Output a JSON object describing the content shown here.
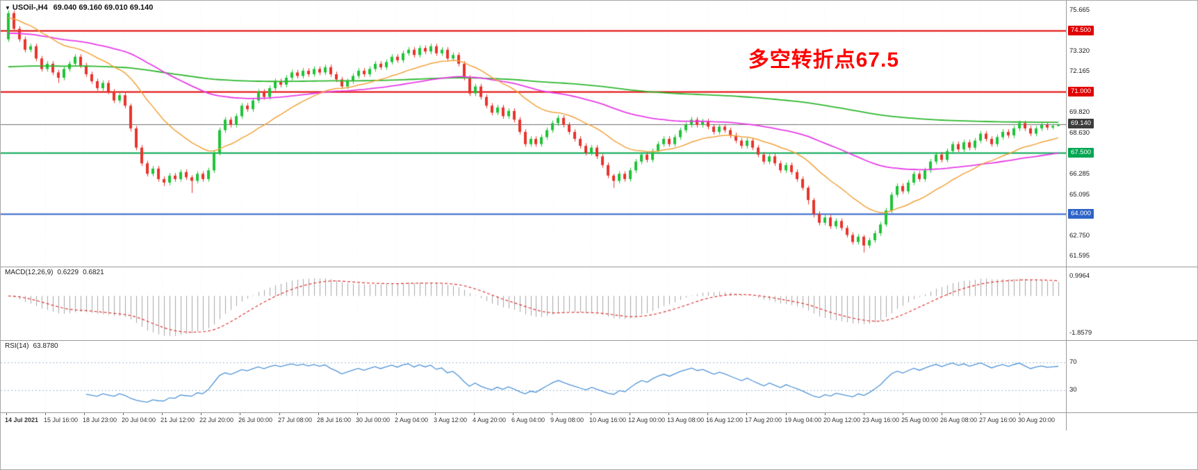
{
  "header": {
    "dropdown": "▼",
    "title": "USOil-,H4",
    "ohlc": "69.040 69.160 69.010 69.140"
  },
  "annotation": {
    "text": "多空转折点67.5",
    "color": "#ff0000"
  },
  "indicators": {
    "macd": {
      "name": "MACD(12,26,9)",
      "value_main": "0.6229",
      "value_signal": "0.6821"
    },
    "rsi": {
      "name": "RSI(14)",
      "value": "63.8780"
    }
  },
  "chart_data": {
    "type": "candlestick",
    "symbol": "USOil-",
    "timeframe": "H4",
    "title": "USOil-,H4 69.040 69.160 69.010 69.140",
    "up_color": "#1fc437",
    "down_color": "#e8342c",
    "price_range": {
      "max": 76.05,
      "min": 61.15
    },
    "price_axis_labels": [
      {
        "price": 75.665,
        "label": "75.665"
      },
      {
        "price": 73.32,
        "label": "73.320"
      },
      {
        "price": 72.165,
        "label": "72.165"
      },
      {
        "price": 69.82,
        "label": "69.820"
      },
      {
        "price": 68.63,
        "label": "68.630"
      },
      {
        "price": 66.285,
        "label": "66.285"
      },
      {
        "price": 65.095,
        "label": "65.095"
      },
      {
        "price": 62.75,
        "label": "62.750"
      },
      {
        "price": 61.595,
        "label": "61.595"
      }
    ],
    "levels": [
      {
        "price": 74.5,
        "label": "74.500",
        "color": "#e10000",
        "width": 2
      },
      {
        "price": 71.0,
        "label": "71.000",
        "color": "#e10000",
        "width": 2
      },
      {
        "price": 67.5,
        "label": "67.500",
        "color": "#00a651",
        "width": 2
      },
      {
        "price": 64.0,
        "label": "64.000",
        "color": "#2e64c8",
        "width": 2
      },
      {
        "price": 69.14,
        "label": "69.140",
        "color": "#6e6e6e",
        "width": 1,
        "badge_color": "#3c3c3c"
      }
    ],
    "moving_averages": [
      {
        "name": "ma-slow-green",
        "color": "#2eb82e",
        "period": 260,
        "seed": 72.4,
        "width": 1.8
      },
      {
        "name": "ma-medium-magenta",
        "color": "#e73ce7",
        "period": 70,
        "seed": 74.3,
        "width": 1.8
      },
      {
        "name": "ma-fast-orange",
        "color": "#f2a33c",
        "period": 20,
        "seed": 75.2,
        "width": 1.5
      }
    ],
    "macd": {
      "fast": 12,
      "slow": 26,
      "signal_period": 9,
      "histogram_color": "#a6a6a6",
      "signal_color": "#e03333",
      "axis": {
        "top": 1.05,
        "bottom": -2.0,
        "max_label": "0.9964",
        "max_value": 0.9964,
        "min_label": "-1.8579",
        "min_value": -1.8579
      }
    },
    "rsi": {
      "period": 14,
      "color": "#4f94d8",
      "levels": [
        70,
        30
      ],
      "level_color": "#9db8d8"
    },
    "time_labels": [
      "14 Jul 2021",
      "15 Jul 16:00",
      "18 Jul 23:00",
      "20 Jul 04:00",
      "21 Jul 12:00",
      "22 Jul 20:00",
      "26 Jul 00:00",
      "27 Jul 08:00",
      "28 Jul 16:00",
      "30 Jul 00:00",
      "2 Aug 04:00",
      "3 Aug 12:00",
      "4 Aug 20:00",
      "6 Aug 04:00",
      "9 Aug 08:00",
      "10 Aug 16:00",
      "12 Aug 00:00",
      "13 Aug 08:00",
      "16 Aug 12:00",
      "17 Aug 20:00",
      "19 Aug 04:00",
      "20 Aug 12:00",
      "23 Aug 16:00",
      "25 Aug 00:00",
      "26 Aug 08:00",
      "27 Aug 16:00",
      "30 Aug 20:00"
    ],
    "candles": [
      [
        74.0,
        75.66,
        73.85,
        75.5
      ],
      [
        75.5,
        75.65,
        74.45,
        74.6
      ],
      [
        74.6,
        74.75,
        73.85,
        74.0
      ],
      [
        74.0,
        74.15,
        73.25,
        73.4
      ],
      [
        73.4,
        73.75,
        73.25,
        73.6
      ],
      [
        73.6,
        73.75,
        72.75,
        72.9
      ],
      [
        72.9,
        73.05,
        72.15,
        72.3
      ],
      [
        72.3,
        72.75,
        72.15,
        72.6
      ],
      [
        72.6,
        72.75,
        71.95,
        72.1
      ],
      [
        72.1,
        72.25,
        71.5,
        71.8
      ],
      [
        71.8,
        72.45,
        71.65,
        72.3
      ],
      [
        72.3,
        72.75,
        72.15,
        72.6
      ],
      [
        72.6,
        73.15,
        72.45,
        73.0
      ],
      [
        73.0,
        73.15,
        72.35,
        72.5
      ],
      [
        72.5,
        72.65,
        71.85,
        72.0
      ],
      [
        72.0,
        72.15,
        71.45,
        71.6
      ],
      [
        71.6,
        71.75,
        71.05,
        71.2
      ],
      [
        71.2,
        71.65,
        71.05,
        71.5
      ],
      [
        71.5,
        71.65,
        70.85,
        71.0
      ],
      [
        71.0,
        71.15,
        70.35,
        70.5
      ],
      [
        70.5,
        70.95,
        70.35,
        70.8
      ],
      [
        70.8,
        70.95,
        70.05,
        70.2
      ],
      [
        70.2,
        70.32,
        68.72,
        68.9
      ],
      [
        68.9,
        69.05,
        67.65,
        67.8
      ],
      [
        67.8,
        67.95,
        66.75,
        66.9
      ],
      [
        66.9,
        67.05,
        66.15,
        66.3
      ],
      [
        66.3,
        66.75,
        66.15,
        66.6
      ],
      [
        66.6,
        66.75,
        65.85,
        66.0
      ],
      [
        66.0,
        66.15,
        65.6,
        65.8
      ],
      [
        65.8,
        66.35,
        65.65,
        66.2
      ],
      [
        66.2,
        66.35,
        65.85,
        66.0
      ],
      [
        66.0,
        66.55,
        65.85,
        66.4
      ],
      [
        66.4,
        66.55,
        65.95,
        66.1
      ],
      [
        66.1,
        66.22,
        65.2,
        65.9
      ],
      [
        65.9,
        66.45,
        65.75,
        66.3
      ],
      [
        66.3,
        66.45,
        65.85,
        66.0
      ],
      [
        66.0,
        66.65,
        65.85,
        66.5
      ],
      [
        66.5,
        67.65,
        66.35,
        67.5
      ],
      [
        67.5,
        68.95,
        67.35,
        68.8
      ],
      [
        68.8,
        69.55,
        68.65,
        69.4
      ],
      [
        69.4,
        69.55,
        68.95,
        69.1
      ],
      [
        69.1,
        69.75,
        68.95,
        69.6
      ],
      [
        69.6,
        70.35,
        69.45,
        70.2
      ],
      [
        70.2,
        70.35,
        69.85,
        70.0
      ],
      [
        70.0,
        70.65,
        69.85,
        70.5
      ],
      [
        70.5,
        71.15,
        70.35,
        71.0
      ],
      [
        71.0,
        71.15,
        70.55,
        70.7
      ],
      [
        70.7,
        71.35,
        70.55,
        71.2
      ],
      [
        71.2,
        71.75,
        71.05,
        71.6
      ],
      [
        71.6,
        71.75,
        71.25,
        71.4
      ],
      [
        71.4,
        71.95,
        71.25,
        71.8
      ],
      [
        71.8,
        72.25,
        71.65,
        72.1
      ],
      [
        72.1,
        72.25,
        71.75,
        71.9
      ],
      [
        71.9,
        72.35,
        71.75,
        72.2
      ],
      [
        72.2,
        72.35,
        71.85,
        72.0
      ],
      [
        72.0,
        72.45,
        71.85,
        72.3
      ],
      [
        72.3,
        72.45,
        71.95,
        72.1
      ],
      [
        72.1,
        72.55,
        71.95,
        72.4
      ],
      [
        72.4,
        72.55,
        71.85,
        72.0
      ],
      [
        72.0,
        72.15,
        71.55,
        71.7
      ],
      [
        71.7,
        71.85,
        71.15,
        71.3
      ],
      [
        71.3,
        71.75,
        71.15,
        71.6
      ],
      [
        71.6,
        72.05,
        71.45,
        71.9
      ],
      [
        71.9,
        72.35,
        71.75,
        72.2
      ],
      [
        72.2,
        72.35,
        71.85,
        72.0
      ],
      [
        72.0,
        72.45,
        71.85,
        72.3
      ],
      [
        72.3,
        72.75,
        72.15,
        72.6
      ],
      [
        72.6,
        72.75,
        72.25,
        72.4
      ],
      [
        72.4,
        72.85,
        72.25,
        72.7
      ],
      [
        72.7,
        73.15,
        72.55,
        73.0
      ],
      [
        73.0,
        73.15,
        72.65,
        72.8
      ],
      [
        72.8,
        73.35,
        72.65,
        73.2
      ],
      [
        73.2,
        73.55,
        73.05,
        73.4
      ],
      [
        73.4,
        73.55,
        72.95,
        73.1
      ],
      [
        73.1,
        73.65,
        72.95,
        73.5
      ],
      [
        73.5,
        73.65,
        73.15,
        73.3
      ],
      [
        73.3,
        73.75,
        73.15,
        73.6
      ],
      [
        73.6,
        73.75,
        73.05,
        73.2
      ],
      [
        73.2,
        73.55,
        73.05,
        73.4
      ],
      [
        73.4,
        73.55,
        72.75,
        72.9
      ],
      [
        72.9,
        73.25,
        72.75,
        73.1
      ],
      [
        73.1,
        73.25,
        72.45,
        72.6
      ],
      [
        72.6,
        72.75,
        71.65,
        71.8
      ],
      [
        71.8,
        71.95,
        70.75,
        70.9
      ],
      [
        70.9,
        71.45,
        70.75,
        71.3
      ],
      [
        71.3,
        71.45,
        70.55,
        70.7
      ],
      [
        70.7,
        70.85,
        70.05,
        70.2
      ],
      [
        70.2,
        70.35,
        69.65,
        69.8
      ],
      [
        69.8,
        70.25,
        69.65,
        70.1
      ],
      [
        70.1,
        70.25,
        69.45,
        69.6
      ],
      [
        69.6,
        70.05,
        69.45,
        69.9
      ],
      [
        69.9,
        70.05,
        69.25,
        69.4
      ],
      [
        69.4,
        69.55,
        68.55,
        68.7
      ],
      [
        68.7,
        68.85,
        67.85,
        68.0
      ],
      [
        68.0,
        68.45,
        67.85,
        68.3
      ],
      [
        68.3,
        68.45,
        67.85,
        68.0
      ],
      [
        68.0,
        68.55,
        67.85,
        68.4
      ],
      [
        68.4,
        68.95,
        68.25,
        68.8
      ],
      [
        68.8,
        69.35,
        68.65,
        69.2
      ],
      [
        69.2,
        69.65,
        69.05,
        69.5
      ],
      [
        69.5,
        69.65,
        68.95,
        69.1
      ],
      [
        69.1,
        69.25,
        68.55,
        68.7
      ],
      [
        68.7,
        68.85,
        68.15,
        68.3
      ],
      [
        68.3,
        68.45,
        67.75,
        67.9
      ],
      [
        67.9,
        68.05,
        67.35,
        67.5
      ],
      [
        67.5,
        67.95,
        67.35,
        67.8
      ],
      [
        67.8,
        67.95,
        67.15,
        67.3
      ],
      [
        67.3,
        67.45,
        66.65,
        66.8
      ],
      [
        66.8,
        66.95,
        66.05,
        66.2
      ],
      [
        66.2,
        66.3,
        65.5,
        65.9
      ],
      [
        65.9,
        66.45,
        65.75,
        66.3
      ],
      [
        66.3,
        66.45,
        65.85,
        66.0
      ],
      [
        66.0,
        66.65,
        65.85,
        66.5
      ],
      [
        66.5,
        67.15,
        66.35,
        67.0
      ],
      [
        67.0,
        67.55,
        66.85,
        67.4
      ],
      [
        67.4,
        67.55,
        66.95,
        67.1
      ],
      [
        67.1,
        67.75,
        66.95,
        67.6
      ],
      [
        67.6,
        68.15,
        67.45,
        68.0
      ],
      [
        68.0,
        68.45,
        67.85,
        68.3
      ],
      [
        68.3,
        68.45,
        67.85,
        68.0
      ],
      [
        68.0,
        68.55,
        67.85,
        68.4
      ],
      [
        68.4,
        68.95,
        68.25,
        68.8
      ],
      [
        68.8,
        69.25,
        68.65,
        69.1
      ],
      [
        69.1,
        69.55,
        68.95,
        69.4
      ],
      [
        69.4,
        69.55,
        68.95,
        69.1
      ],
      [
        69.1,
        69.45,
        68.95,
        69.3
      ],
      [
        69.3,
        69.45,
        68.85,
        69.0
      ],
      [
        69.0,
        69.15,
        68.55,
        68.7
      ],
      [
        68.7,
        69.15,
        68.55,
        69.0
      ],
      [
        69.0,
        69.15,
        68.65,
        68.8
      ],
      [
        68.8,
        68.95,
        68.35,
        68.5
      ],
      [
        68.5,
        68.65,
        68.05,
        68.2
      ],
      [
        68.2,
        68.35,
        67.75,
        67.9
      ],
      [
        67.9,
        68.35,
        67.75,
        68.2
      ],
      [
        68.2,
        68.35,
        67.65,
        67.8
      ],
      [
        67.8,
        67.95,
        67.25,
        67.4
      ],
      [
        67.4,
        67.55,
        66.85,
        67.0
      ],
      [
        67.0,
        67.45,
        66.85,
        67.3
      ],
      [
        67.3,
        67.45,
        66.75,
        66.9
      ],
      [
        66.9,
        67.05,
        66.35,
        66.5
      ],
      [
        66.5,
        66.95,
        66.35,
        66.8
      ],
      [
        66.8,
        66.95,
        66.25,
        66.4
      ],
      [
        66.4,
        66.55,
        65.85,
        66.0
      ],
      [
        66.0,
        66.15,
        65.35,
        65.5
      ],
      [
        65.5,
        65.62,
        64.55,
        64.8
      ],
      [
        64.8,
        64.92,
        63.8,
        64.0
      ],
      [
        64.0,
        64.15,
        63.35,
        63.5
      ],
      [
        63.5,
        63.95,
        63.35,
        63.8
      ],
      [
        63.8,
        63.95,
        63.15,
        63.3
      ],
      [
        63.3,
        63.75,
        63.15,
        63.6
      ],
      [
        63.6,
        63.75,
        63.05,
        63.2
      ],
      [
        63.2,
        63.35,
        62.65,
        62.8
      ],
      [
        62.8,
        62.95,
        62.25,
        62.4
      ],
      [
        62.4,
        62.85,
        62.25,
        62.7
      ],
      [
        62.7,
        62.8,
        61.8,
        62.2
      ],
      [
        62.2,
        62.65,
        62.05,
        62.5
      ],
      [
        62.5,
        63.05,
        62.35,
        62.9
      ],
      [
        62.9,
        63.55,
        62.75,
        63.4
      ],
      [
        63.4,
        64.35,
        63.28,
        64.2
      ],
      [
        64.2,
        65.25,
        64.05,
        65.1
      ],
      [
        65.1,
        65.75,
        64.95,
        65.6
      ],
      [
        65.6,
        65.75,
        65.15,
        65.3
      ],
      [
        65.3,
        65.95,
        65.15,
        65.8
      ],
      [
        65.8,
        66.45,
        65.65,
        66.3
      ],
      [
        66.3,
        66.45,
        65.85,
        66.0
      ],
      [
        66.0,
        66.65,
        65.85,
        66.5
      ],
      [
        66.5,
        67.15,
        66.35,
        67.0
      ],
      [
        67.0,
        67.55,
        66.85,
        67.4
      ],
      [
        67.4,
        67.55,
        66.95,
        67.1
      ],
      [
        67.1,
        67.75,
        66.95,
        67.6
      ],
      [
        67.6,
        68.15,
        67.45,
        68.0
      ],
      [
        68.0,
        68.15,
        67.55,
        67.7
      ],
      [
        67.7,
        68.25,
        67.55,
        68.1
      ],
      [
        68.1,
        68.25,
        67.65,
        67.8
      ],
      [
        67.8,
        68.35,
        67.65,
        68.2
      ],
      [
        68.2,
        68.75,
        68.05,
        68.6
      ],
      [
        68.6,
        68.75,
        68.15,
        68.3
      ],
      [
        68.3,
        68.45,
        67.85,
        68.0
      ],
      [
        68.0,
        68.55,
        67.85,
        68.4
      ],
      [
        68.4,
        68.85,
        68.25,
        68.7
      ],
      [
        68.7,
        68.85,
        68.35,
        68.5
      ],
      [
        68.5,
        69.05,
        68.35,
        68.9
      ],
      [
        68.9,
        69.35,
        68.75,
        69.2
      ],
      [
        69.2,
        69.35,
        68.75,
        68.9
      ],
      [
        68.9,
        69.05,
        68.45,
        68.6
      ],
      [
        68.6,
        69.05,
        68.45,
        68.9
      ],
      [
        68.9,
        69.25,
        68.75,
        69.1
      ],
      [
        69.1,
        69.25,
        68.8,
        68.95
      ],
      [
        68.95,
        69.15,
        68.85,
        69.04
      ],
      [
        69.04,
        69.16,
        69.01,
        69.14
      ]
    ]
  }
}
